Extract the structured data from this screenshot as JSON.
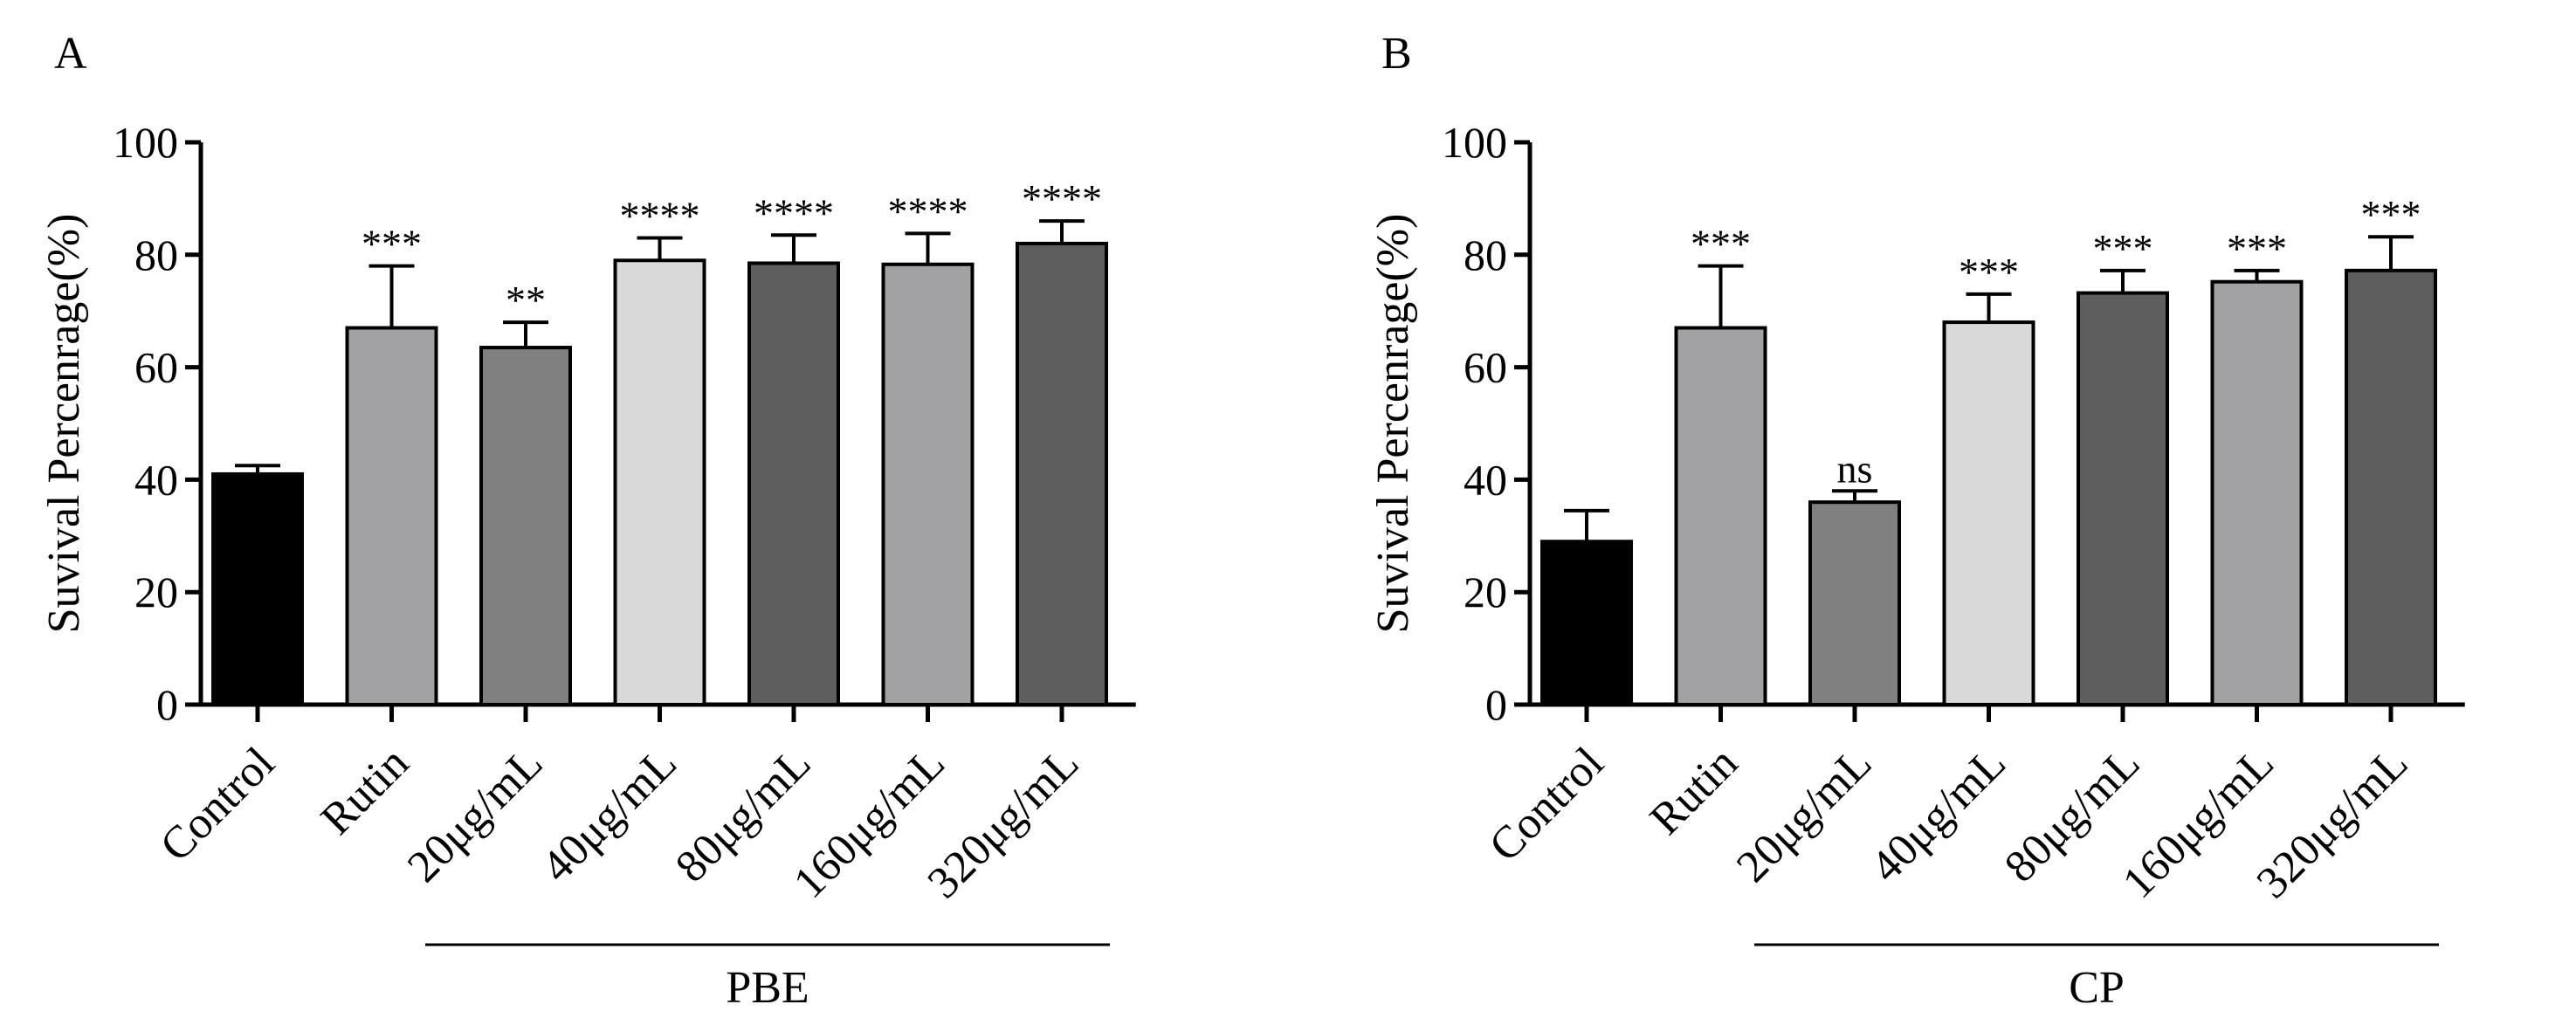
{
  "chart_data": [
    {
      "type": "bar",
      "panel": "A",
      "title": "",
      "xlabel": "",
      "ylabel": "Suvival Percenrage(%)",
      "ylim": [
        0,
        100
      ],
      "yticks": [
        0,
        20,
        40,
        60,
        80,
        100
      ],
      "categories": [
        "Control",
        "Rutin",
        "20μg/mL",
        "40μg/mL",
        "80μg/mL",
        "160μg/mL",
        "320μg/mL"
      ],
      "values": [
        41,
        67,
        63.5,
        79,
        78.5,
        78.3,
        82
      ],
      "errors": [
        1.5,
        11,
        4.5,
        4,
        5,
        5.5,
        4
      ],
      "significance": [
        "",
        "***",
        "**",
        "****",
        "****",
        "****",
        "****"
      ],
      "colors": [
        "#000000",
        "#a2a2a5",
        "#808080",
        "#d9d9d9",
        "#5e5e5e",
        "#a2a2a5",
        "#5e5e5e"
      ],
      "group_label": "PBE"
    },
    {
      "type": "bar",
      "panel": "B",
      "title": "",
      "xlabel": "",
      "ylabel": "Suvival Percenrage(%)",
      "ylim": [
        0,
        100
      ],
      "yticks": [
        0,
        20,
        40,
        60,
        80,
        100
      ],
      "categories": [
        "Control",
        "Rutin",
        "20μg/mL",
        "40μg/mL",
        "80μg/mL",
        "160μg/mL",
        "320μg/mL"
      ],
      "values": [
        29,
        67,
        36,
        68,
        73.2,
        75.2,
        77.2
      ],
      "errors": [
        5.5,
        11,
        2,
        5,
        4,
        2,
        6
      ],
      "significance": [
        "",
        "***",
        "ns",
        "***",
        "***",
        "***",
        "***"
      ],
      "colors": [
        "#000000",
        "#a2a2a5",
        "#808080",
        "#d9d9d9",
        "#5e5e5e",
        "#a2a2a5",
        "#5e5e5e"
      ],
      "group_label": "CP"
    }
  ]
}
